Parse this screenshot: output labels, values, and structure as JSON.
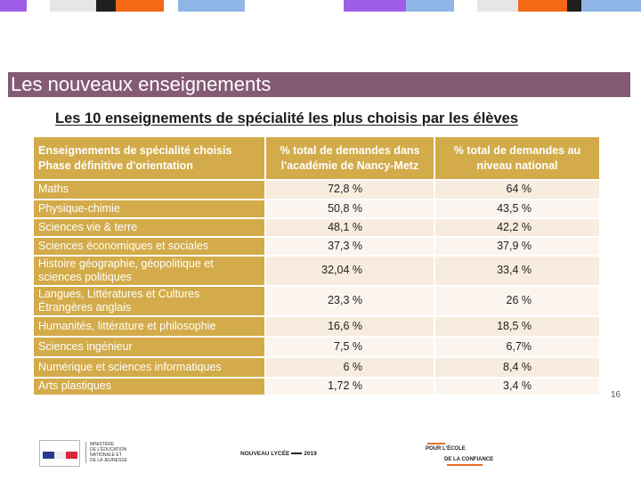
{
  "colors": {
    "title_band": "#845a75",
    "table_header": "#d3ab4a",
    "row_light": "#fcf5ef",
    "row_shaded": "#f8ecdf",
    "strip": [
      "#a05ee6",
      "#f46816",
      "#8fb6e6",
      "#e6e6e6",
      "#1f1f1f"
    ]
  },
  "slide": {
    "title": "Les nouveaux enseignements",
    "subtitle": "Les 10 enseignements de spécialité les plus choisis par les élèves",
    "page_number": "16"
  },
  "table": {
    "headers": [
      [
        "Enseignements de spécialité choisis",
        "Phase définitive d'orientation"
      ],
      [
        "% total de demandes dans",
        "l'académie de Nancy-Metz"
      ],
      [
        "% total de demandes au",
        "niveau national"
      ]
    ],
    "rows": [
      {
        "subject": [
          "Maths"
        ],
        "academy": "72,8 %",
        "national": "64 %"
      },
      {
        "subject": [
          "Physique-chimie"
        ],
        "academy": "50,8 %",
        "national": "43,5 %"
      },
      {
        "subject": [
          "Sciences vie & terre"
        ],
        "academy": "48,1 %",
        "national": "42,2 %"
      },
      {
        "subject": [
          "Sciences économiques et sociales"
        ],
        "academy": "37,3 %",
        "national": "37,9 %"
      },
      {
        "subject": [
          "Histoire géographie, géopolitique et",
          "sciences politiques"
        ],
        "academy": "32,04 %",
        "national": "33,4 %"
      },
      {
        "subject": [
          "Langues, Littératures et Cultures",
          "Étrangères anglais"
        ],
        "academy": "23,3 %",
        "national": "26 %"
      },
      {
        "subject": [
          "Humanités, littérature et philosophie"
        ],
        "academy": "16,6 %",
        "national": "18,5 %"
      },
      {
        "subject": [
          "Sciences ingénieur"
        ],
        "academy": "7,5 %",
        "national": "6,7%"
      },
      {
        "subject": [
          "Numérique et sciences informatiques"
        ],
        "academy": "6 %",
        "national": "8,4 %"
      },
      {
        "subject": [
          "Arts plastiques"
        ],
        "academy": "1,72 %",
        "national": "3,4 %"
      }
    ]
  },
  "footer": {
    "ministry_lines": [
      "MINISTÈRE",
      "DE L'ÉDUCATION",
      "NATIONALE ET",
      "DE LA JEUNESSE"
    ],
    "nouveau_lycee": "NOUVEAU LYCÉE",
    "nouveau_lycee_year": "2019",
    "ecole_line1": "POUR L'ÉCOLE",
    "ecole_line2": "DE LA CONFIANCE"
  }
}
